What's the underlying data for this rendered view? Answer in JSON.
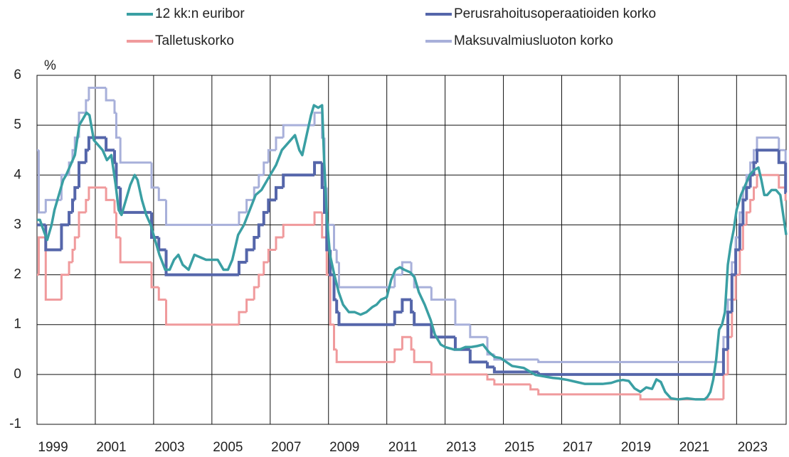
{
  "chart_data": {
    "type": "line",
    "y_label": "%",
    "xlim": [
      1999,
      2024.7
    ],
    "ylim": [
      -1,
      6
    ],
    "yticks": [
      -1,
      0,
      1,
      2,
      3,
      4,
      5,
      6
    ],
    "xticks": [
      1999,
      2001,
      2003,
      2005,
      2007,
      2009,
      2011,
      2013,
      2015,
      2017,
      2019,
      2021,
      2023
    ],
    "grid": true,
    "series": [
      {
        "name": "12 kk:n euribor",
        "color": "#3a9fa3",
        "step": false,
        "x": [
          1999.0,
          1999.1,
          1999.25,
          1999.35,
          1999.5,
          1999.6,
          1999.75,
          1999.9,
          2000.0,
          2000.15,
          2000.3,
          2000.45,
          2000.55,
          2000.7,
          2000.8,
          2000.95,
          2001.1,
          2001.25,
          2001.4,
          2001.55,
          2001.7,
          2001.8,
          2001.9,
          2002.0,
          2002.2,
          2002.35,
          2002.45,
          2002.6,
          2002.75,
          2002.9,
          2003.0,
          2003.2,
          2003.4,
          2003.55,
          2003.7,
          2003.85,
          2004.0,
          2004.2,
          2004.4,
          2004.6,
          2004.8,
          2005.0,
          2005.2,
          2005.4,
          2005.55,
          2005.7,
          2005.9,
          2006.1,
          2006.3,
          2006.5,
          2006.7,
          2006.9,
          2007.0,
          2007.2,
          2007.4,
          2007.55,
          2007.7,
          2007.85,
          2008.0,
          2008.1,
          2008.25,
          2008.4,
          2008.5,
          2008.65,
          2008.78,
          2008.85,
          2008.95,
          2009.05,
          2009.2,
          2009.35,
          2009.5,
          2009.7,
          2009.9,
          2010.1,
          2010.3,
          2010.5,
          2010.65,
          2010.8,
          2011.0,
          2011.15,
          2011.3,
          2011.45,
          2011.6,
          2011.8,
          2011.95,
          2012.1,
          2012.3,
          2012.5,
          2012.65,
          2012.85,
          2013.0,
          2013.3,
          2013.5,
          2013.7,
          2013.9,
          2014.1,
          2014.3,
          2014.5,
          2014.7,
          2014.9,
          2015.1,
          2015.3,
          2015.5,
          2015.7,
          2015.9,
          2016.1,
          2016.3,
          2016.5,
          2016.7,
          2016.9,
          2017.2,
          2017.5,
          2017.8,
          2018.1,
          2018.4,
          2018.7,
          2018.9,
          2019.1,
          2019.3,
          2019.5,
          2019.7,
          2019.9,
          2020.1,
          2020.25,
          2020.4,
          2020.55,
          2020.75,
          2021.0,
          2021.3,
          2021.6,
          2021.9,
          2022.0,
          2022.1,
          2022.2,
          2022.3,
          2022.4,
          2022.5,
          2022.6,
          2022.7,
          2022.8,
          2022.9,
          2023.0,
          2023.15,
          2023.3,
          2023.45,
          2023.6,
          2023.75,
          2023.85,
          2023.95,
          2024.05,
          2024.2,
          2024.35,
          2024.5,
          2024.6,
          2024.7
        ],
        "values": [
          3.1,
          3.1,
          2.85,
          2.7,
          3.0,
          3.3,
          3.6,
          3.9,
          4.0,
          4.2,
          4.4,
          5.0,
          5.1,
          5.25,
          5.2,
          4.7,
          4.6,
          4.5,
          4.3,
          4.4,
          3.8,
          3.3,
          3.2,
          3.4,
          3.8,
          4.0,
          3.9,
          3.5,
          3.2,
          3.0,
          2.8,
          2.4,
          2.1,
          2.1,
          2.3,
          2.4,
          2.2,
          2.1,
          2.4,
          2.35,
          2.3,
          2.3,
          2.3,
          2.1,
          2.1,
          2.3,
          2.8,
          3.0,
          3.3,
          3.6,
          3.7,
          3.9,
          4.0,
          4.2,
          4.5,
          4.6,
          4.7,
          4.8,
          4.5,
          4.4,
          4.8,
          5.2,
          5.4,
          5.35,
          5.4,
          4.3,
          3.1,
          2.4,
          2.0,
          1.65,
          1.4,
          1.25,
          1.25,
          1.2,
          1.25,
          1.35,
          1.4,
          1.5,
          1.55,
          1.9,
          2.1,
          2.15,
          2.1,
          2.05,
          1.95,
          1.65,
          1.4,
          1.1,
          0.8,
          0.6,
          0.55,
          0.5,
          0.5,
          0.55,
          0.55,
          0.57,
          0.6,
          0.45,
          0.35,
          0.33,
          0.25,
          0.17,
          0.15,
          0.13,
          0.06,
          -0.01,
          -0.03,
          -0.05,
          -0.07,
          -0.08,
          -0.11,
          -0.15,
          -0.19,
          -0.19,
          -0.19,
          -0.17,
          -0.13,
          -0.11,
          -0.13,
          -0.28,
          -0.35,
          -0.26,
          -0.29,
          -0.1,
          -0.15,
          -0.35,
          -0.48,
          -0.5,
          -0.48,
          -0.5,
          -0.5,
          -0.45,
          -0.35,
          -0.1,
          0.3,
          0.9,
          1.0,
          1.25,
          2.2,
          2.6,
          2.9,
          3.3,
          3.6,
          3.8,
          4.0,
          4.1,
          4.15,
          3.9,
          3.6,
          3.6,
          3.7,
          3.7,
          3.6,
          3.2,
          2.8
        ]
      },
      {
        "name": "Perusrahoitusoperaatioiden korko",
        "color": "#5566aa",
        "step": true,
        "x": [
          1999.0,
          1999.3,
          1999.84,
          2000.1,
          2000.22,
          2000.3,
          2000.44,
          2000.68,
          2000.78,
          2001.37,
          2001.66,
          2001.72,
          2001.86,
          2002.93,
          2003.18,
          2003.43,
          2005.93,
          2006.19,
          2006.45,
          2006.61,
          2006.78,
          2006.94,
          2007.2,
          2007.45,
          2008.52,
          2008.78,
          2008.86,
          2008.94,
          2009.06,
          2009.19,
          2009.28,
          2009.36,
          2011.27,
          2011.53,
          2011.84,
          2011.94,
          2012.53,
          2013.35,
          2013.86,
          2014.45,
          2014.69,
          2016.2,
          2022.55,
          2022.7,
          2022.84,
          2022.97,
          2023.11,
          2023.22,
          2023.34,
          2023.47,
          2023.59,
          2023.7,
          2024.45,
          2024.68
        ],
        "values": [
          3.0,
          2.5,
          3.0,
          3.25,
          3.5,
          3.75,
          4.25,
          4.5,
          4.75,
          4.5,
          4.25,
          3.75,
          3.25,
          2.75,
          2.5,
          2.0,
          2.25,
          2.5,
          2.75,
          3.0,
          3.25,
          3.5,
          3.75,
          4.0,
          4.25,
          3.75,
          3.25,
          2.5,
          2.0,
          1.5,
          1.25,
          1.0,
          1.25,
          1.5,
          1.25,
          1.0,
          0.75,
          0.5,
          0.25,
          0.15,
          0.05,
          0,
          0.5,
          1.25,
          2.0,
          2.5,
          3.0,
          3.5,
          3.75,
          4.0,
          4.25,
          4.5,
          4.25,
          3.65
        ]
      },
      {
        "name": "Talletuskorko",
        "color": "#f09a9c",
        "step": true,
        "x": [
          1999.0,
          1999.06,
          1999.3,
          1999.84,
          2000.1,
          2000.22,
          2000.3,
          2000.44,
          2000.68,
          2000.78,
          2001.37,
          2001.66,
          2001.72,
          2001.86,
          2002.93,
          2003.18,
          2003.43,
          2005.93,
          2006.19,
          2006.45,
          2006.61,
          2006.78,
          2006.94,
          2007.2,
          2007.45,
          2008.52,
          2008.78,
          2008.94,
          2009.06,
          2009.19,
          2009.28,
          2011.27,
          2011.53,
          2011.84,
          2011.94,
          2012.53,
          2014.45,
          2014.69,
          2015.93,
          2016.2,
          2019.7,
          2022.55,
          2022.7,
          2022.84,
          2022.97,
          2023.11,
          2023.22,
          2023.34,
          2023.47,
          2023.59,
          2023.7,
          2024.45,
          2024.68
        ],
        "values": [
          2.0,
          2.75,
          1.5,
          2.0,
          2.25,
          2.5,
          2.75,
          3.25,
          3.5,
          3.75,
          3.5,
          3.25,
          2.75,
          2.25,
          1.75,
          1.5,
          1.0,
          1.25,
          1.5,
          1.75,
          2.0,
          2.25,
          2.5,
          2.75,
          3.0,
          3.25,
          2.75,
          2.0,
          1.0,
          0.5,
          0.25,
          0.5,
          0.75,
          0.5,
          0.25,
          0,
          -0.1,
          -0.2,
          -0.3,
          -0.4,
          -0.5,
          0,
          0.75,
          1.5,
          2.0,
          2.5,
          3.0,
          3.25,
          3.5,
          3.75,
          4.0,
          3.75,
          3.5
        ]
      },
      {
        "name": "Maksuvalmiusluoton korko",
        "color": "#a8b0da",
        "step": true,
        "x": [
          1999.0,
          1999.06,
          1999.3,
          1999.84,
          2000.1,
          2000.22,
          2000.3,
          2000.44,
          2000.68,
          2000.78,
          2001.37,
          2001.66,
          2001.72,
          2001.86,
          2002.93,
          2003.18,
          2003.43,
          2005.93,
          2006.19,
          2006.45,
          2006.61,
          2006.78,
          2006.94,
          2007.2,
          2007.45,
          2008.52,
          2008.78,
          2008.86,
          2008.94,
          2009.19,
          2009.28,
          2009.36,
          2011.27,
          2011.53,
          2011.84,
          2011.94,
          2012.53,
          2013.35,
          2013.86,
          2014.45,
          2014.69,
          2016.2,
          2022.55,
          2022.7,
          2022.84,
          2022.97,
          2023.11,
          2023.22,
          2023.34,
          2023.47,
          2023.59,
          2023.7,
          2024.45,
          2024.68
        ],
        "values": [
          4.5,
          3.25,
          3.5,
          4.0,
          4.25,
          4.5,
          4.75,
          5.25,
          5.5,
          5.75,
          5.5,
          5.25,
          4.75,
          4.25,
          3.75,
          3.5,
          3.0,
          3.25,
          3.5,
          3.75,
          4.0,
          4.25,
          4.5,
          4.75,
          5.0,
          5.25,
          4.75,
          3.75,
          3.0,
          2.5,
          2.25,
          1.75,
          2.0,
          2.25,
          2.0,
          1.75,
          1.5,
          1.0,
          0.75,
          0.4,
          0.3,
          0.25,
          0.75,
          1.5,
          2.25,
          2.75,
          3.25,
          3.75,
          4.0,
          4.25,
          4.5,
          4.75,
          4.5,
          3.9
        ]
      }
    ]
  }
}
